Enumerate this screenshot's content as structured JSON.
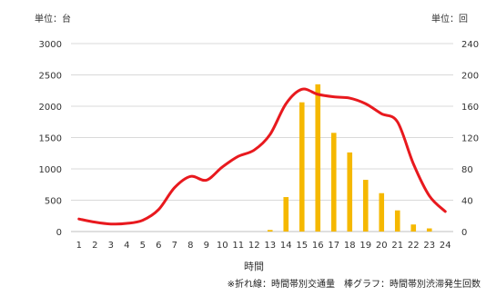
{
  "chart_data": {
    "type": "bar",
    "y_unit_left": "単位：台",
    "y_unit_right": "単位：回",
    "xlabel": "時間",
    "footnote": "※折れ線：時間帯別交通量　棒グラフ：時間帯別渋滞発生回数",
    "categories": [
      "1",
      "2",
      "3",
      "4",
      "5",
      "6",
      "7",
      "8",
      "9",
      "10",
      "11",
      "12",
      "13",
      "14",
      "15",
      "16",
      "17",
      "18",
      "19",
      "20",
      "21",
      "22",
      "23",
      "24"
    ],
    "ylim_left": [
      0,
      3000
    ],
    "yticks_left": [
      "0",
      "500",
      "1000",
      "1500",
      "2000",
      "2500",
      "3000"
    ],
    "ylim_right": [
      0,
      240
    ],
    "yticks_right": [
      "0",
      "40",
      "80",
      "120",
      "160",
      "200",
      "240"
    ],
    "grid": true,
    "series": [
      {
        "type": "line",
        "axis": "left",
        "color": "#e8191e",
        "values": [
          200,
          150,
          120,
          130,
          180,
          350,
          700,
          880,
          820,
          1030,
          1200,
          1300,
          1550,
          2040,
          2270,
          2190,
          2150,
          2130,
          2040,
          1880,
          1750,
          1080,
          570,
          320
        ]
      },
      {
        "type": "bar",
        "axis": "right",
        "color": "#f5b800",
        "values": [
          0,
          0,
          0,
          0,
          0,
          0,
          0,
          0,
          0,
          0,
          0,
          0,
          2,
          44,
          165,
          188,
          126,
          101,
          66,
          49,
          27,
          9,
          4,
          0
        ]
      }
    ]
  }
}
